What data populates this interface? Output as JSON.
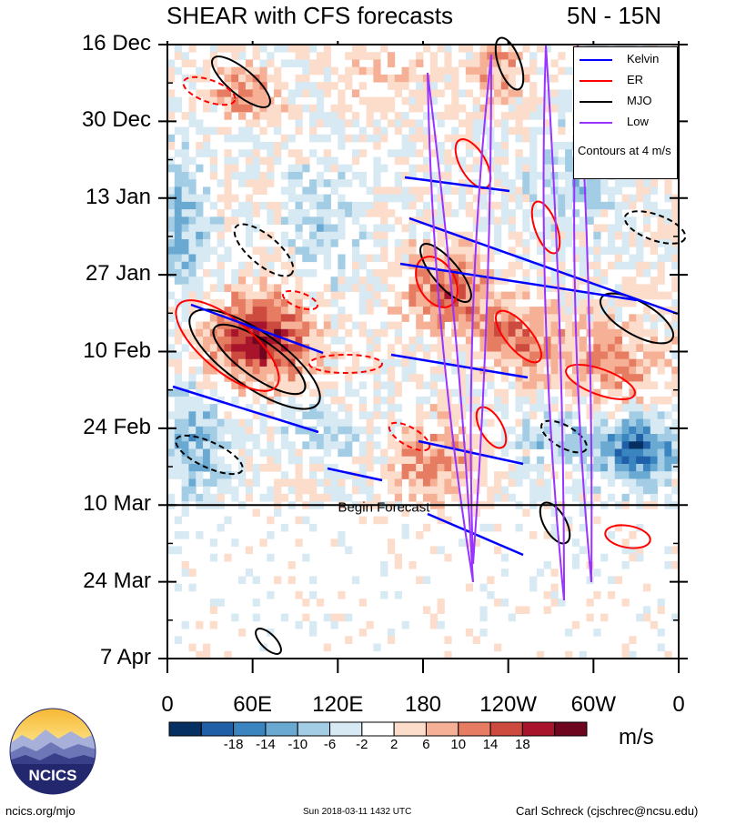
{
  "header": {
    "title": "SHEAR with CFS forecasts",
    "region": "5N - 15N"
  },
  "chart_data": {
    "type": "heatmap",
    "title": "SHEAR with CFS forecasts",
    "subtitle": "5N - 15N",
    "x_ticks": [
      "0",
      "60E",
      "120E",
      "180",
      "120W",
      "60W",
      "0"
    ],
    "y_ticks": [
      "16 Dec",
      "30 Dec",
      "13 Jan",
      "27 Jan",
      "10 Feb",
      "24 Feb",
      "10 Mar",
      "24 Mar",
      "7 Apr"
    ],
    "xlim": [
      0,
      360
    ],
    "ylim": [
      "2017-12-16",
      "2018-04-07"
    ],
    "colorbar": {
      "labels": [
        "-18",
        "-14",
        "-10",
        "-6",
        "-2",
        "2",
        "6",
        "10",
        "14",
        "18"
      ],
      "colors": [
        "#053061",
        "#1f5fa8",
        "#3a85bf",
        "#6aa9d2",
        "#a3cde4",
        "#d7e9f3",
        "#ffffff",
        "#fcdccb",
        "#f5b096",
        "#e67c62",
        "#cd4a3f",
        "#a8142b",
        "#6e0620"
      ],
      "units": "m/s"
    },
    "legend": {
      "items": [
        {
          "label": "Kelvin",
          "color": "#0000ff"
        },
        {
          "label": "ER",
          "color": "#ff0000"
        },
        {
          "label": "MJO",
          "color": "#000000"
        },
        {
          "label": "Low",
          "color": "#9933ff"
        }
      ],
      "note": "Contours at 4 m/s",
      "placement": "top-right"
    },
    "annotations": [
      {
        "text": "Begin Forecast",
        "y": "2018-03-10"
      }
    ]
  },
  "footer": {
    "logo_text": "NCICS",
    "url": "ncics.org/mjo",
    "timestamp": "Sun 2018-03-11 1432 UTC",
    "author": "Carl Schreck (cjschrec@ncsu.edu)"
  }
}
